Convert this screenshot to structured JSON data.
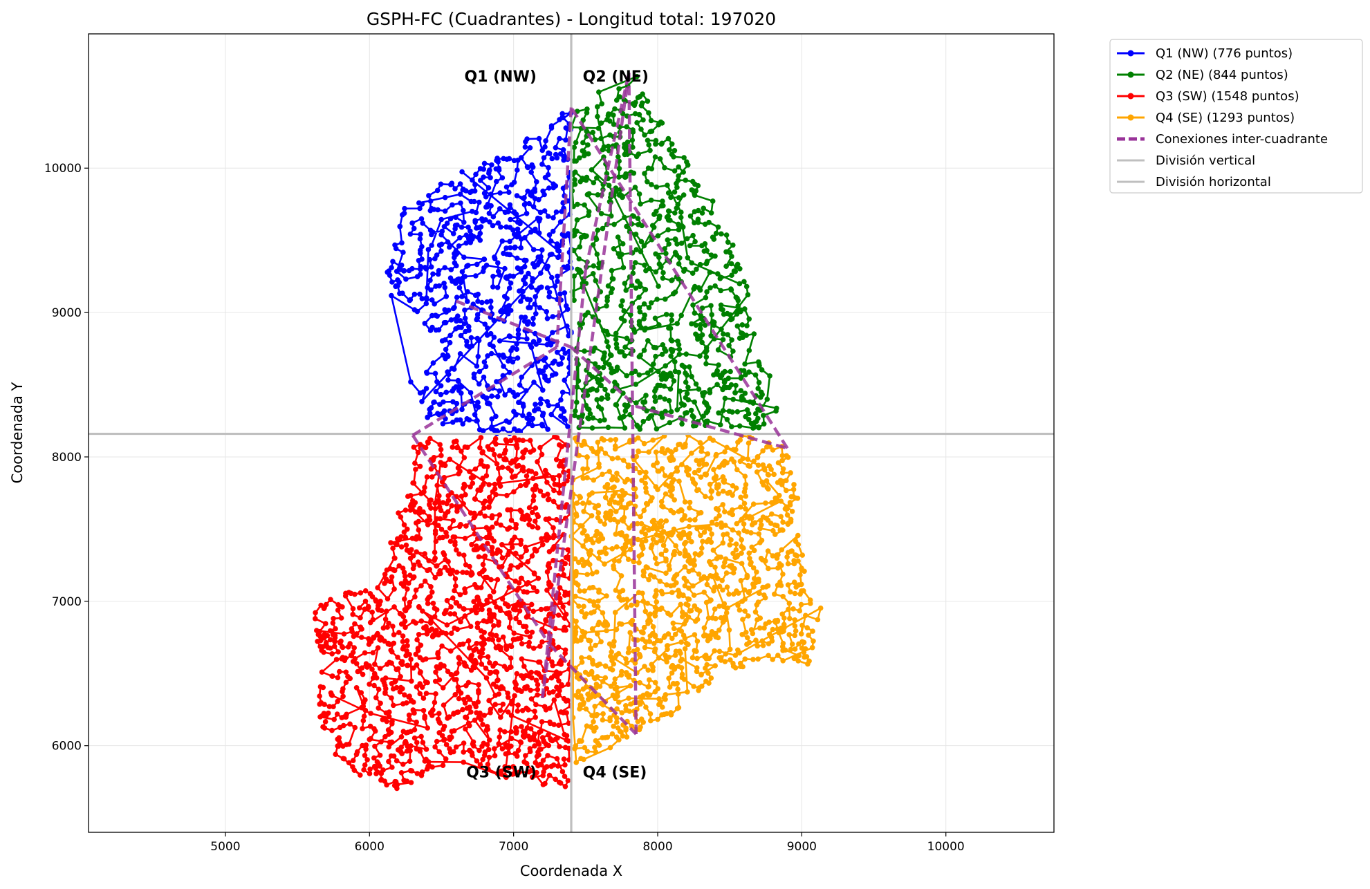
{
  "chart_data": {
    "type": "line",
    "title": "GSPH-FC (Cuadrantes) - Longitud total: 197020",
    "xlabel": "Coordenada X",
    "ylabel": "Coordenada Y",
    "xlim": [
      4050,
      10750
    ],
    "ylim": [
      5400,
      10930
    ],
    "xticks": [
      5000,
      6000,
      7000,
      8000,
      9000,
      10000
    ],
    "yticks": [
      6000,
      7000,
      8000,
      9000,
      10000
    ],
    "grid": true,
    "legend_position": "outside-top-right",
    "division_vertical_x": 7400,
    "division_horizontal_y": 8160,
    "series": [
      {
        "name": "Q1 (NW) (776 puntos)",
        "color": "#0000ff",
        "points": 776,
        "seed": 11,
        "region": [
          [
            6100,
            9150
          ],
          [
            6200,
            9700
          ],
          [
            6450,
            9900
          ],
          [
            6800,
            10050
          ],
          [
            7000,
            10100
          ],
          [
            7200,
            10350
          ],
          [
            7400,
            10400
          ],
          [
            7400,
            8200
          ],
          [
            6900,
            8150
          ],
          [
            6400,
            8250
          ],
          [
            6250,
            8550
          ],
          [
            6500,
            8700
          ],
          [
            6300,
            9000
          ]
        ]
      },
      {
        "name": "Q2 (NE) (844 puntos)",
        "color": "#008000",
        "points": 844,
        "seed": 23,
        "region": [
          [
            7400,
            10400
          ],
          [
            7600,
            10550
          ],
          [
            7850,
            10650
          ],
          [
            8100,
            10200
          ],
          [
            8350,
            9850
          ],
          [
            8500,
            9550
          ],
          [
            8650,
            9100
          ],
          [
            8700,
            8700
          ],
          [
            8850,
            8450
          ],
          [
            8800,
            8200
          ],
          [
            7400,
            8180
          ]
        ]
      },
      {
        "name": "Q3 (SW) (1548 puntos)",
        "color": "#ff0000",
        "points": 1548,
        "seed": 37,
        "region": [
          [
            6300,
            8150
          ],
          [
            7400,
            8150
          ],
          [
            7400,
            5700
          ],
          [
            7000,
            5750
          ],
          [
            6600,
            5900
          ],
          [
            6200,
            5700
          ],
          [
            5900,
            5800
          ],
          [
            5650,
            6050
          ],
          [
            5650,
            6600
          ],
          [
            5600,
            6950
          ],
          [
            5800,
            7050
          ],
          [
            6100,
            7150
          ],
          [
            6150,
            7550
          ],
          [
            6300,
            7800
          ]
        ]
      },
      {
        "name": "Q4 (SE) (1293 puntos)",
        "color": "#ffa500",
        "points": 1293,
        "seed": 53,
        "region": [
          [
            7400,
            8150
          ],
          [
            8850,
            8150
          ],
          [
            8950,
            7900
          ],
          [
            9000,
            7500
          ],
          [
            9050,
            7100
          ],
          [
            9150,
            6950
          ],
          [
            9050,
            6550
          ],
          [
            8700,
            6600
          ],
          [
            8400,
            6450
          ],
          [
            8100,
            6200
          ],
          [
            7800,
            6050
          ],
          [
            7500,
            5900
          ],
          [
            7400,
            5850
          ]
        ]
      },
      {
        "name": "Conexiones inter-cuadrante",
        "color": "#993399",
        "style": "dashed",
        "x": [
          6600,
          7400,
          7850,
          8900,
          7400,
          7300,
          6300,
          7250,
          7850,
          7800,
          7200,
          7500,
          7800
        ],
        "y": [
          9080,
          8760,
          8350,
          8060,
          10420,
          8760,
          8150,
          6700,
          6080,
          10660,
          6330,
          9300,
          10660
        ]
      },
      {
        "name": "División vertical",
        "color": "#bfbfbf"
      },
      {
        "name": "División horizontal",
        "color": "#bfbfbf"
      }
    ],
    "annotations": [
      {
        "text": "Q1 (NW)",
        "x": 7160,
        "y": 10600,
        "anchor": "end"
      },
      {
        "text": "Q2 (NE)",
        "x": 7480,
        "y": 10600,
        "anchor": "start"
      },
      {
        "text": "Q3 (SW)",
        "x": 7160,
        "y": 5780,
        "anchor": "end"
      },
      {
        "text": "Q4 (SE)",
        "x": 7480,
        "y": 5780,
        "anchor": "start"
      }
    ]
  }
}
